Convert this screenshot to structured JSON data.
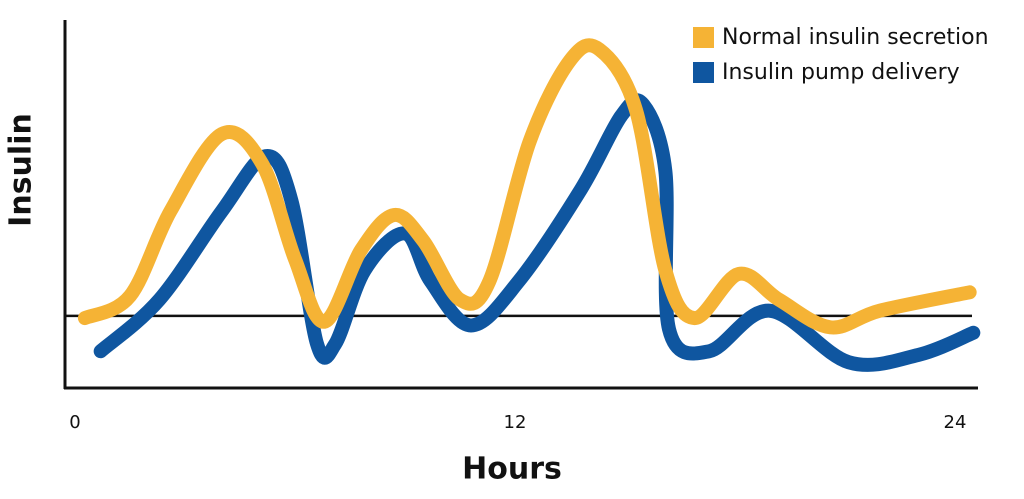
{
  "chart_data": {
    "type": "line",
    "xlabel": "Hours",
    "ylabel": "Insulin",
    "xlim": [
      0,
      24
    ],
    "xticks": [
      0,
      12,
      24
    ],
    "ylim": [
      0,
      100
    ],
    "reference_line": 19.6,
    "legend": "top-right",
    "series": [
      {
        "name": "Normal insulin secretion",
        "color": "#f5b335",
        "x": [
          0.27,
          1.5,
          2.6,
          4.0,
          5.1,
          6.0,
          6.8,
          7.8,
          8.7,
          9.5,
          10.5,
          11.3,
          12.4,
          13.5,
          14.3,
          15.3,
          16.1,
          16.9,
          18.1,
          19.2,
          20.6,
          21.95,
          24.4
        ],
        "values": [
          19,
          25,
          48,
          69,
          61,
          35,
          18,
          37.5,
          47,
          40,
          24,
          29,
          67,
          89,
          92,
          75.5,
          32,
          19,
          31,
          24,
          16.5,
          21,
          26
        ]
      },
      {
        "name": "Insulin pump delivery",
        "color": "#0f56a0",
        "x": [
          0.7,
          2.3,
          4.0,
          5.2,
          5.9,
          6.6,
          7.1,
          7.9,
          9.0,
          9.7,
          10.8,
          12.1,
          13.8,
          14.9,
          15.5,
          16.1,
          16.2,
          17.3,
          18.95,
          21.1,
          23.0,
          24.5
        ],
        "values": [
          10,
          24,
          48,
          63,
          51,
          12,
          12,
          32,
          42,
          29,
          17,
          29,
          54,
          74,
          77,
          59,
          16,
          10,
          21,
          7,
          9,
          15
        ]
      }
    ]
  }
}
